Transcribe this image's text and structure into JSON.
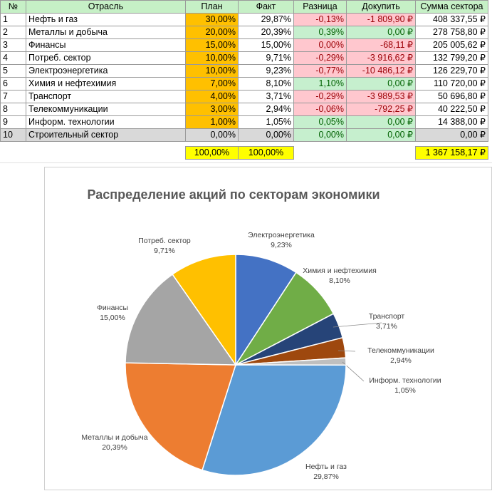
{
  "table": {
    "headers": [
      "№",
      "Отрасль",
      "План",
      "Факт",
      "Разница",
      "Докупить",
      "Сумма сектора"
    ],
    "rows": [
      {
        "n": "1",
        "name": "Нефть и газ",
        "plan": "30,00%",
        "fact": "29,87%",
        "diff": "-0,13%",
        "buy": "-1 809,90 ₽",
        "sum": "408 337,55 ₽",
        "sign": "neg"
      },
      {
        "n": "2",
        "name": "Металлы и добыча",
        "plan": "20,00%",
        "fact": "20,39%",
        "diff": "0,39%",
        "buy": "0,00 ₽",
        "sum": "278 758,80 ₽",
        "sign": "pos"
      },
      {
        "n": "3",
        "name": "Финансы",
        "plan": "15,00%",
        "fact": "15,00%",
        "diff": "0,00%",
        "buy": "-68,11 ₽",
        "sum": "205 005,62 ₽",
        "sign": "neg"
      },
      {
        "n": "4",
        "name": "Потреб. сектор",
        "plan": "10,00%",
        "fact": "9,71%",
        "diff": "-0,29%",
        "buy": "-3 916,62 ₽",
        "sum": "132 799,20 ₽",
        "sign": "neg"
      },
      {
        "n": "5",
        "name": "Электроэнергетика",
        "plan": "10,00%",
        "fact": "9,23%",
        "diff": "-0,77%",
        "buy": "-10 486,12 ₽",
        "sum": "126 229,70 ₽",
        "sign": "neg"
      },
      {
        "n": "6",
        "name": "Химия и нефтехимия",
        "plan": "7,00%",
        "fact": "8,10%",
        "diff": "1,10%",
        "buy": "0,00 ₽",
        "sum": "110 720,00 ₽",
        "sign": "pos"
      },
      {
        "n": "7",
        "name": "Транспорт",
        "plan": "4,00%",
        "fact": "3,71%",
        "diff": "-0,29%",
        "buy": "-3 989,53 ₽",
        "sum": "50 696,80 ₽",
        "sign": "neg"
      },
      {
        "n": "8",
        "name": "Телекоммуникации",
        "plan": "3,00%",
        "fact": "2,94%",
        "diff": "-0,06%",
        "buy": "-792,25 ₽",
        "sum": "40 222,50 ₽",
        "sign": "neg"
      },
      {
        "n": "9",
        "name": "Информ. технологии",
        "plan": "1,00%",
        "fact": "1,05%",
        "diff": "0,05%",
        "buy": "0,00 ₽",
        "sum": "14 388,00 ₽",
        "sign": "pos"
      },
      {
        "n": "10",
        "name": "Строительный сектор",
        "plan": "0,00%",
        "fact": "0,00%",
        "diff": "0,00%",
        "buy": "0,00 ₽",
        "sum": "0,00 ₽",
        "sign": "pos",
        "gray": true
      }
    ],
    "totals": {
      "plan": "100,00%",
      "fact": "100,00%",
      "sum": "1 367 158,17 ₽"
    }
  },
  "chart_data": {
    "type": "pie",
    "title": "Распределение акций по секторам экономики",
    "slices": [
      {
        "name": "Электроэнергетика",
        "value": 9.23,
        "label": "9,23%",
        "color": "#4472c4"
      },
      {
        "name": "Химия и нефтехимия",
        "value": 8.1,
        "label": "8,10%",
        "color": "#70ad47"
      },
      {
        "name": "Транспорт",
        "value": 3.71,
        "label": "3,71%",
        "color": "#264478"
      },
      {
        "name": "Телекоммуникации",
        "value": 2.94,
        "label": "2,94%",
        "color": "#9e480e"
      },
      {
        "name": "Информ. технологии",
        "value": 1.05,
        "label": "1,05%",
        "color": "#bfbfbf"
      },
      {
        "name": "Нефть и газ",
        "value": 29.87,
        "label": "29,87%",
        "color": "#5b9bd5"
      },
      {
        "name": "Металлы и добыча",
        "value": 20.39,
        "label": "20,39%",
        "color": "#ed7d31"
      },
      {
        "name": "Финансы",
        "value": 15.0,
        "label": "15,00%",
        "color": "#a5a5a5"
      },
      {
        "name": "Потреб. сектор",
        "value": 9.71,
        "label": "9,71%",
        "color": "#ffc000"
      }
    ]
  }
}
